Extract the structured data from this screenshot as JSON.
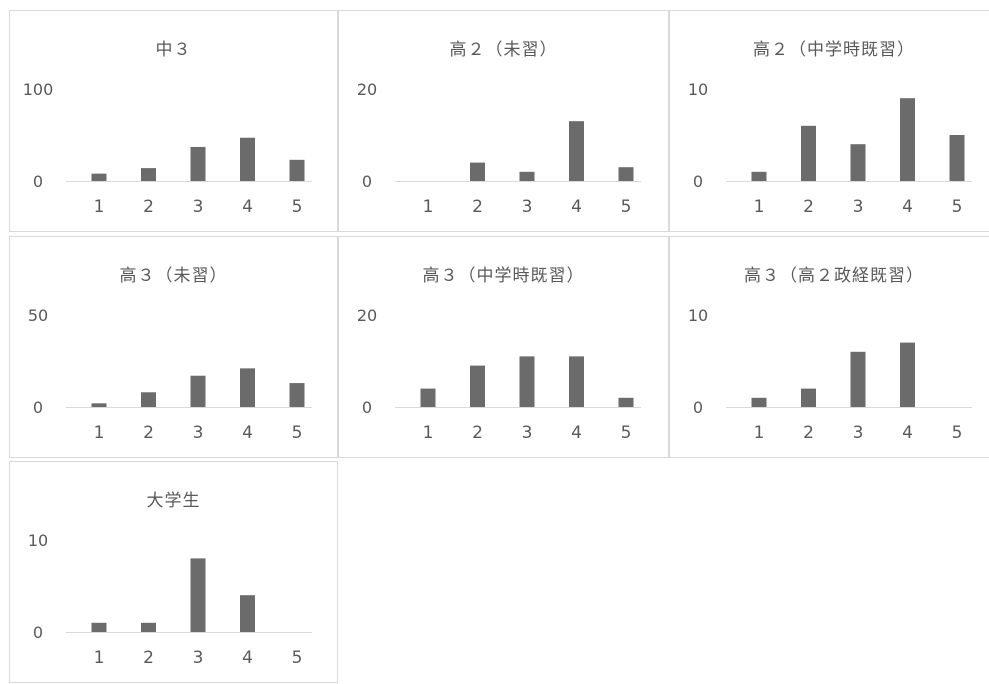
{
  "colors": {
    "bar": "#6b6b6b",
    "axis": "#d9d9d9",
    "text": "#595959",
    "border": "#d9d9d9"
  },
  "chart_data": [
    {
      "type": "bar",
      "title": "中３",
      "categories": [
        "1",
        "2",
        "3",
        "4",
        "5"
      ],
      "values": [
        8,
        14,
        37,
        47,
        23
      ],
      "ylim": [
        0,
        100
      ],
      "yticks": [
        "0",
        "100"
      ],
      "grid": false
    },
    {
      "type": "bar",
      "title": "高２（未習）",
      "categories": [
        "1",
        "2",
        "3",
        "4",
        "5"
      ],
      "values": [
        0,
        4,
        2,
        13,
        3
      ],
      "ylim": [
        0,
        20
      ],
      "yticks": [
        "0",
        "20"
      ],
      "grid": false
    },
    {
      "type": "bar",
      "title": "高２（中学時既習）",
      "categories": [
        "1",
        "2",
        "3",
        "4",
        "5"
      ],
      "values": [
        1,
        6,
        4,
        9,
        5
      ],
      "ylim": [
        0,
        10
      ],
      "yticks": [
        "0",
        "10"
      ],
      "grid": false
    },
    {
      "type": "bar",
      "title": "高３（未習）",
      "categories": [
        "1",
        "2",
        "3",
        "4",
        "5"
      ],
      "values": [
        2,
        8,
        17,
        21,
        13
      ],
      "ylim": [
        0,
        50
      ],
      "yticks": [
        "0",
        "50"
      ],
      "grid": false
    },
    {
      "type": "bar",
      "title": "高３（中学時既習）",
      "categories": [
        "1",
        "2",
        "3",
        "4",
        "5"
      ],
      "values": [
        4,
        9,
        11,
        11,
        2
      ],
      "ylim": [
        0,
        20
      ],
      "yticks": [
        "0",
        "20"
      ],
      "grid": false
    },
    {
      "type": "bar",
      "title": "高３（高２政経既習）",
      "categories": [
        "1",
        "2",
        "3",
        "4",
        "5"
      ],
      "values": [
        1,
        2,
        6,
        7,
        0
      ],
      "ylim": [
        0,
        10
      ],
      "yticks": [
        "0",
        "10"
      ],
      "grid": false
    },
    {
      "type": "bar",
      "title": "大学生",
      "categories": [
        "1",
        "2",
        "3",
        "4",
        "5"
      ],
      "values": [
        1,
        1,
        8,
        4,
        0
      ],
      "ylim": [
        0,
        10
      ],
      "yticks": [
        "0",
        "10"
      ],
      "grid": false
    }
  ]
}
